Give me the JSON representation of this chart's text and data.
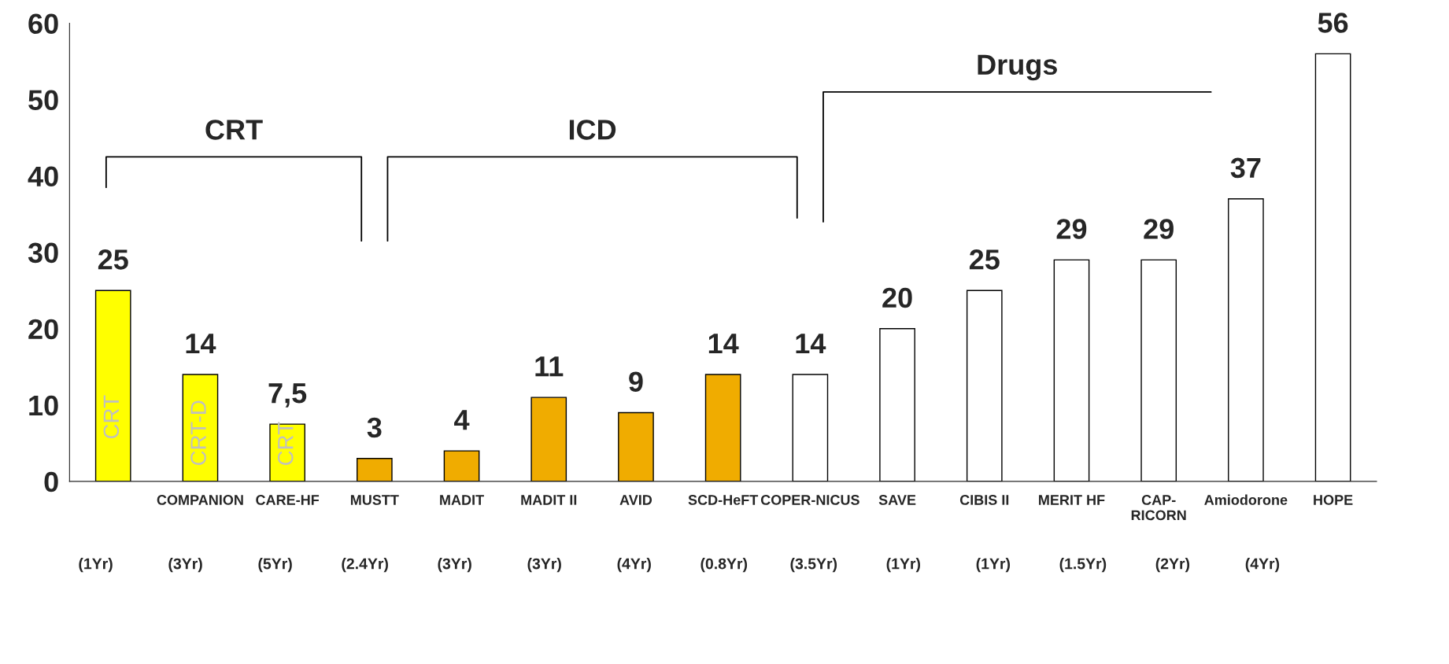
{
  "chart_data": {
    "type": "bar",
    "categories": [
      null,
      "COMPANION",
      "CARE-HF",
      "MUSTT",
      "MADIT",
      "MADIT II",
      "AVID",
      "SCD-HeFT",
      "COPER-NICUS",
      "SAVE",
      "CIBIS II",
      "MERIT HF",
      "CAP-\nRICORN",
      "Amiodorone",
      "HOPE"
    ],
    "values": [
      25,
      14,
      7.5,
      3,
      4,
      11,
      9,
      14,
      14,
      20,
      25,
      29,
      29,
      37,
      56
    ],
    "value_labels": [
      "25",
      "14",
      "7,5",
      "3",
      "4",
      "11",
      "9",
      "14",
      "14",
      "20",
      "25",
      "29",
      "29",
      "37",
      "56"
    ],
    "colors": [
      "#ffff00",
      "#ffff00",
      "#ffff00",
      "#f0ac00",
      "#f0ac00",
      "#f0ac00",
      "#f0ac00",
      "#f0ac00",
      "#ffffff",
      "#ffffff",
      "#ffffff",
      "#ffffff",
      "#ffffff",
      "#ffffff",
      "#ffffff"
    ],
    "ylim": [
      0,
      60
    ],
    "yticks": [
      0,
      10,
      20,
      30,
      40,
      50,
      60
    ],
    "grid": false,
    "annotations": [
      "CRT",
      "CRT-D",
      "CRT",
      "CRT",
      "ICD",
      "Drugs",
      "(1Yr)",
      "(3Yr)",
      "(5Yr)",
      "(2.4Yr)",
      "(3Yr)",
      "(3Yr)",
      "(4Yr)",
      "(0.8Yr)",
      "(3.5Yr)",
      "(1Yr)",
      "(1Yr)",
      "(1.5Yr)",
      "(2Yr)",
      "(4Yr)"
    ]
  }
}
